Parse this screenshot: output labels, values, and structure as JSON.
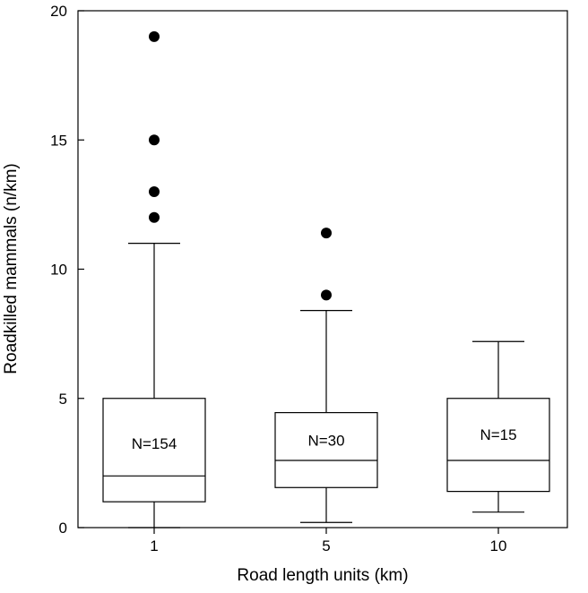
{
  "chart_data": {
    "type": "box",
    "xlabel": "Road length units (km)",
    "ylabel": "Roadkilled mammals (n/km)",
    "ylim": [
      0,
      20
    ],
    "yticks": [
      "0",
      "5",
      "10",
      "15",
      "20"
    ],
    "grid": false,
    "legend": "none",
    "series": [
      {
        "category": "1",
        "n_label": "N=154",
        "whisker_low": 0,
        "q1": 1.0,
        "median": 2.0,
        "q3": 5.0,
        "whisker_high": 11.0,
        "outliers": [
          12,
          13,
          15,
          19
        ]
      },
      {
        "category": "5",
        "n_label": "N=30",
        "whisker_low": 0.2,
        "q1": 1.55,
        "median": 2.6,
        "q3": 4.45,
        "whisker_high": 8.4,
        "outliers": [
          9.0,
          11.4
        ]
      },
      {
        "category": "10",
        "n_label": "N=15",
        "whisker_low": 0.6,
        "q1": 1.4,
        "median": 2.6,
        "q3": 5.0,
        "whisker_high": 7.2,
        "outliers": []
      }
    ]
  }
}
